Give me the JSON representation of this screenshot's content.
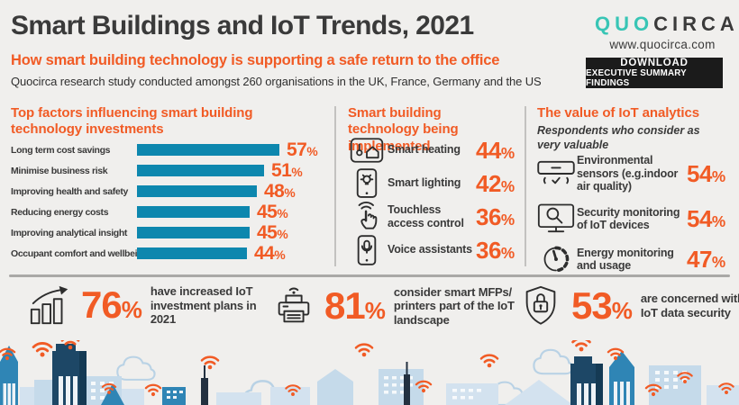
{
  "header": {
    "title": "Smart Buildings and IoT Trends, 2021",
    "subtitle": "How smart building technology is supporting a safe return to the office",
    "description": "Quocirca research study conducted amongst 260 organisations in the UK, France, Germany and the US",
    "logo": {
      "part1": "QUO",
      "part2": "CIRCA",
      "website": "www.quocirca.com"
    },
    "download_button": {
      "line1": "DOWNLOAD",
      "line2": "EXECUTIVE SUMMARY FINDINGS"
    }
  },
  "misc": {
    "percent_sign": "%"
  },
  "colors": {
    "accent_orange": "#f15b25",
    "bar_teal": "#0d87ae",
    "logo_teal": "#38c5b5",
    "text_dark": "#3a3a3a",
    "button_black": "#1b1b1b",
    "background": "#f0efed"
  },
  "factors": {
    "title": "Top factors influencing smart building technology investments",
    "items": [
      {
        "label": "Long term cost savings",
        "value": 57,
        "num": "57"
      },
      {
        "label": "Minimise business risk",
        "value": 51,
        "num": "51"
      },
      {
        "label": "Improving health and safety",
        "value": 48,
        "num": "48"
      },
      {
        "label": "Reducing energy costs",
        "value": 45,
        "num": "45"
      },
      {
        "label": "Improving analytical insight",
        "value": 45,
        "num": "45"
      },
      {
        "label": "Occupant comfort and wellbeing",
        "value": 44,
        "num": "44"
      }
    ]
  },
  "implemented": {
    "title": "Smart building technology being implemented",
    "items": [
      {
        "label": "Smart heating",
        "num": "44",
        "icon": "smart-heating-icon"
      },
      {
        "label": "Smart lighting",
        "num": "42",
        "icon": "smart-lighting-icon"
      },
      {
        "label": "Touchless access control",
        "num": "36",
        "icon": "touchless-access-icon"
      },
      {
        "label": "Voice assistants",
        "num": "36",
        "icon": "voice-assistant-icon"
      }
    ]
  },
  "analytics": {
    "title": "The value of IoT analytics",
    "subtitle": "Respondents who consider as very valuable",
    "items": [
      {
        "label": "Environmental sensors (e.g.indoor air quality)",
        "num": "54",
        "icon": "air-conditioner-icon"
      },
      {
        "label": "Security monitoring of IoT devices",
        "num": "54",
        "icon": "monitor-magnifier-icon"
      },
      {
        "label": "Energy monitoring and usage",
        "num": "47",
        "icon": "energy-gauge-icon"
      }
    ]
  },
  "stats": [
    {
      "num": "76",
      "text": "have increased IoT investment plans in 2021",
      "icon": "growth-chart-icon"
    },
    {
      "num": "81",
      "text": "consider smart MFPs/ printers part of the IoT landscape",
      "icon": "wireless-printer-icon"
    },
    {
      "num": "53",
      "text": "are concerned with IoT data security",
      "icon": "shield-lock-icon"
    }
  ],
  "chart_data": [
    {
      "type": "bar",
      "orientation": "horizontal",
      "title": "Top factors influencing smart building technology investments",
      "categories": [
        "Long term cost savings",
        "Minimise business risk",
        "Improving health and safety",
        "Reducing energy costs",
        "Improving analytical insight",
        "Occupant comfort and wellbeing"
      ],
      "values": [
        57,
        51,
        48,
        45,
        45,
        44
      ],
      "unit": "%",
      "xlabel": "",
      "ylabel": "",
      "xlim": [
        0,
        60
      ],
      "grid": false,
      "legend": false,
      "bar_color": "#0d87ae",
      "value_label_color": "#f15b25"
    },
    {
      "type": "table",
      "title": "Smart building technology being implemented",
      "categories": [
        "Smart heating",
        "Smart lighting",
        "Touchless access control",
        "Voice assistants"
      ],
      "values": [
        44,
        42,
        36,
        36
      ],
      "unit": "%"
    },
    {
      "type": "table",
      "title": "The value of IoT analytics",
      "subtitle": "Respondents who consider as very valuable",
      "categories": [
        "Environmental sensors (e.g.indoor air quality)",
        "Security monitoring of IoT devices",
        "Energy monitoring and usage"
      ],
      "values": [
        54,
        54,
        47
      ],
      "unit": "%"
    },
    {
      "type": "table",
      "title": "Bottom headline statistics",
      "categories": [
        "have increased IoT investment plans in 2021",
        "consider smart MFPs/ printers part of the IoT landscape",
        "are concerned with IoT data security"
      ],
      "values": [
        76,
        81,
        53
      ],
      "unit": "%"
    }
  ]
}
